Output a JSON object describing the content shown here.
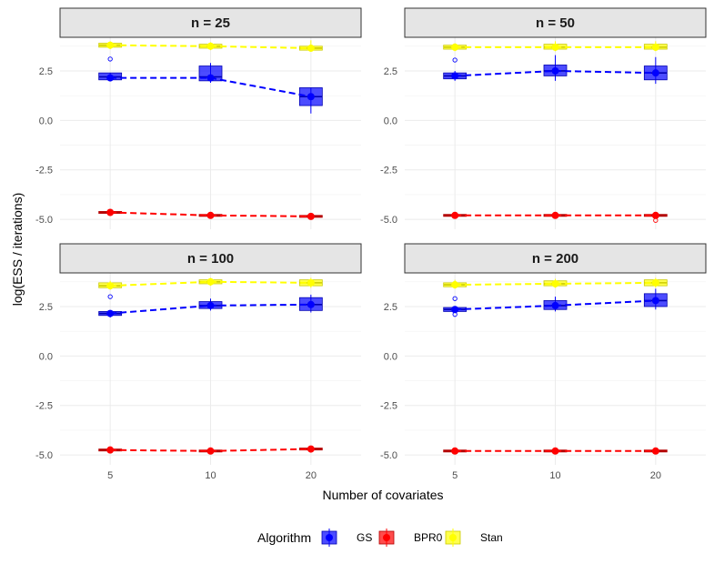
{
  "chart_data": {
    "type": "boxplot",
    "xlabel": "Number of covariates",
    "ylabel": "log(ESS / iterations)",
    "categories": [
      "5",
      "10",
      "20"
    ],
    "yticks": [
      "-5.0",
      "-2.5",
      "0.0",
      "2.5"
    ],
    "ylim": [
      -5.5,
      4.2
    ],
    "legend": {
      "title": "Algorithm",
      "position": "bottom",
      "entries": [
        {
          "name": "GS",
          "color": "#0000ff"
        },
        {
          "name": "BPR0",
          "color": "#ff0000"
        },
        {
          "name": "Stan",
          "color": "#ffff00"
        }
      ]
    },
    "panels": [
      {
        "title": "n = 25",
        "series": [
          {
            "name": "GS",
            "color": "#0000ff",
            "boxes": [
              {
                "q1": 2.05,
                "med": 2.2,
                "q3": 2.4,
                "lo": 2.0,
                "hi": 2.4,
                "mean": 2.15,
                "out": [
                  3.1
                ]
              },
              {
                "q1": 2.0,
                "med": 2.2,
                "q3": 2.75,
                "lo": 1.9,
                "hi": 2.9,
                "mean": 2.15,
                "out": []
              },
              {
                "q1": 0.75,
                "med": 1.2,
                "q3": 1.65,
                "lo": 0.35,
                "hi": 1.65,
                "mean": 1.2,
                "out": []
              }
            ]
          },
          {
            "name": "BPR0",
            "color": "#ff0000",
            "boxes": [
              {
                "q1": -4.7,
                "med": -4.65,
                "q3": -4.6,
                "lo": -4.75,
                "hi": -4.55,
                "mean": -4.65,
                "out": []
              },
              {
                "q1": -4.85,
                "med": -4.8,
                "q3": -4.75,
                "lo": -4.9,
                "hi": -4.7,
                "mean": -4.8,
                "out": []
              },
              {
                "q1": -4.9,
                "med": -4.85,
                "q3": -4.8,
                "lo": -4.95,
                "hi": -4.75,
                "mean": -4.85,
                "out": []
              }
            ]
          },
          {
            "name": "Stan",
            "color": "#ffff00",
            "boxes": [
              {
                "q1": 3.7,
                "med": 3.8,
                "q3": 3.9,
                "lo": 3.6,
                "hi": 4.0,
                "mean": 3.8,
                "out": []
              },
              {
                "q1": 3.65,
                "med": 3.75,
                "q3": 3.85,
                "lo": 3.55,
                "hi": 3.95,
                "mean": 3.75,
                "out": []
              },
              {
                "q1": 3.55,
                "med": 3.65,
                "q3": 3.75,
                "lo": 3.5,
                "hi": 4.05,
                "mean": 3.65,
                "out": []
              }
            ]
          }
        ]
      },
      {
        "title": "n = 50",
        "series": [
          {
            "name": "GS",
            "color": "#0000ff",
            "boxes": [
              {
                "q1": 2.1,
                "med": 2.25,
                "q3": 2.4,
                "lo": 2.0,
                "hi": 2.5,
                "mean": 2.25,
                "out": [
                  3.05
                ]
              },
              {
                "q1": 2.25,
                "med": 2.5,
                "q3": 2.8,
                "lo": 2.0,
                "hi": 3.3,
                "mean": 2.5,
                "out": []
              },
              {
                "q1": 2.05,
                "med": 2.4,
                "q3": 2.75,
                "lo": 1.85,
                "hi": 3.2,
                "mean": 2.4,
                "out": []
              }
            ]
          },
          {
            "name": "BPR0",
            "color": "#ff0000",
            "boxes": [
              {
                "q1": -4.85,
                "med": -4.8,
                "q3": -4.75,
                "lo": -4.9,
                "hi": -4.7,
                "mean": -4.8,
                "out": []
              },
              {
                "q1": -4.85,
                "med": -4.8,
                "q3": -4.75,
                "lo": -4.9,
                "hi": -4.7,
                "mean": -4.8,
                "out": []
              },
              {
                "q1": -4.85,
                "med": -4.8,
                "q3": -4.75,
                "lo": -4.9,
                "hi": -4.7,
                "mean": -4.8,
                "out": [
                  -5.05
                ]
              }
            ]
          },
          {
            "name": "Stan",
            "color": "#ffff00",
            "boxes": [
              {
                "q1": 3.6,
                "med": 3.7,
                "q3": 3.8,
                "lo": 3.5,
                "hi": 3.9,
                "mean": 3.7,
                "out": []
              },
              {
                "q1": 3.6,
                "med": 3.7,
                "q3": 3.85,
                "lo": 3.5,
                "hi": 4.0,
                "mean": 3.7,
                "out": []
              },
              {
                "q1": 3.6,
                "med": 3.7,
                "q3": 3.85,
                "lo": 3.5,
                "hi": 4.0,
                "mean": 3.7,
                "out": []
              }
            ]
          }
        ]
      },
      {
        "title": "n = 100",
        "series": [
          {
            "name": "GS",
            "color": "#0000ff",
            "boxes": [
              {
                "q1": 2.05,
                "med": 2.15,
                "q3": 2.25,
                "lo": 1.95,
                "hi": 2.3,
                "mean": 2.15,
                "out": [
                  3.0
                ]
              },
              {
                "q1": 2.4,
                "med": 2.55,
                "q3": 2.75,
                "lo": 2.3,
                "hi": 2.9,
                "mean": 2.55,
                "out": []
              },
              {
                "q1": 2.3,
                "med": 2.6,
                "q3": 2.95,
                "lo": 2.2,
                "hi": 3.1,
                "mean": 2.6,
                "out": []
              }
            ]
          },
          {
            "name": "BPR0",
            "color": "#ff0000",
            "boxes": [
              {
                "q1": -4.8,
                "med": -4.75,
                "q3": -4.7,
                "lo": -4.85,
                "hi": -4.65,
                "mean": -4.75,
                "out": []
              },
              {
                "q1": -4.85,
                "med": -4.8,
                "q3": -4.75,
                "lo": -4.9,
                "hi": -4.7,
                "mean": -4.8,
                "out": []
              },
              {
                "q1": -4.75,
                "med": -4.7,
                "q3": -4.65,
                "lo": -4.8,
                "hi": -4.6,
                "mean": -4.7,
                "out": []
              }
            ]
          },
          {
            "name": "Stan",
            "color": "#ffff00",
            "boxes": [
              {
                "q1": 3.45,
                "med": 3.55,
                "q3": 3.7,
                "lo": 3.35,
                "hi": 3.8,
                "mean": 3.55,
                "out": []
              },
              {
                "q1": 3.65,
                "med": 3.75,
                "q3": 3.85,
                "lo": 3.55,
                "hi": 3.95,
                "mean": 3.75,
                "out": []
              },
              {
                "q1": 3.55,
                "med": 3.7,
                "q3": 3.85,
                "lo": 3.45,
                "hi": 3.95,
                "mean": 3.7,
                "out": []
              }
            ]
          }
        ]
      },
      {
        "title": "n = 200",
        "series": [
          {
            "name": "GS",
            "color": "#0000ff",
            "boxes": [
              {
                "q1": 2.25,
                "med": 2.35,
                "q3": 2.45,
                "lo": 2.2,
                "hi": 2.5,
                "mean": 2.35,
                "out": [
                  2.9,
                  2.1
                ]
              },
              {
                "q1": 2.35,
                "med": 2.55,
                "q3": 2.8,
                "lo": 2.25,
                "hi": 3.0,
                "mean": 2.55,
                "out": []
              },
              {
                "q1": 2.5,
                "med": 2.8,
                "q3": 3.15,
                "lo": 2.35,
                "hi": 3.4,
                "mean": 2.8,
                "out": []
              }
            ]
          },
          {
            "name": "BPR0",
            "color": "#ff0000",
            "boxes": [
              {
                "q1": -4.85,
                "med": -4.8,
                "q3": -4.75,
                "lo": -4.9,
                "hi": -4.7,
                "mean": -4.8,
                "out": []
              },
              {
                "q1": -4.85,
                "med": -4.8,
                "q3": -4.75,
                "lo": -4.9,
                "hi": -4.7,
                "mean": -4.8,
                "out": []
              },
              {
                "q1": -4.85,
                "med": -4.8,
                "q3": -4.75,
                "lo": -4.9,
                "hi": -4.7,
                "mean": -4.8,
                "out": []
              }
            ]
          },
          {
            "name": "Stan",
            "color": "#ffff00",
            "boxes": [
              {
                "q1": 3.5,
                "med": 3.6,
                "q3": 3.7,
                "lo": 3.4,
                "hi": 3.85,
                "mean": 3.6,
                "out": []
              },
              {
                "q1": 3.55,
                "med": 3.65,
                "q3": 3.8,
                "lo": 3.45,
                "hi": 3.9,
                "mean": 3.65,
                "out": []
              },
              {
                "q1": 3.55,
                "med": 3.7,
                "q3": 3.85,
                "lo": 3.45,
                "hi": 3.95,
                "mean": 3.7,
                "out": []
              }
            ]
          }
        ]
      }
    ]
  }
}
